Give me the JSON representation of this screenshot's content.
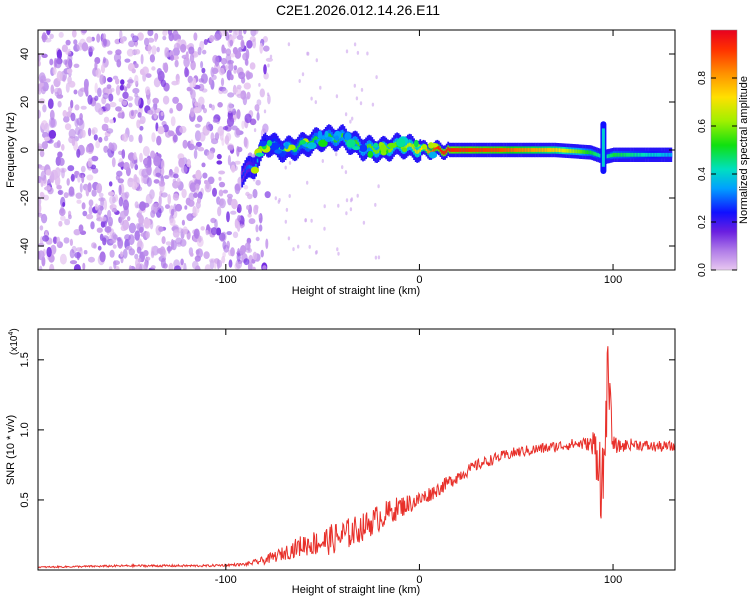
{
  "figure_title": "C2E1.2026.012.14.26.E11",
  "colors": {
    "snr_line": "#e8302a",
    "axis": "#000000",
    "background": "#ffffff"
  },
  "chart_data": [
    {
      "type": "heatmap",
      "title": "C2E1.2026.012.14.26.E11",
      "xlabel": "Height of straight line (km)",
      "ylabel": "Frequency (Hz)",
      "xlim": [
        -197,
        132
      ],
      "ylim": [
        -50,
        50
      ],
      "xticks": [
        -100,
        0,
        100
      ],
      "xtick_labels": [
        "-100",
        "0",
        "100"
      ],
      "yticks": [
        -40,
        -20,
        0,
        20,
        40
      ],
      "ytick_labels": [
        "-40",
        "-20",
        "0",
        "20",
        "40"
      ],
      "colorbar": {
        "label": "Normalized spectral amplitude",
        "range": [
          0,
          1
        ],
        "ticks": [
          0.0,
          0.2,
          0.4,
          0.6,
          0.8
        ],
        "tick_labels": [
          "0.0",
          "0.2",
          "0.4",
          "0.6",
          "0.8"
        ],
        "colormap": "rainbow (violet to red)"
      },
      "features": {
        "noise_region_x": [
          -197,
          -88
        ],
        "noise_region_amplitude": [
          0.0,
          0.15
        ],
        "track": {
          "x": [
            -92,
            -85,
            -80,
            -70,
            -60,
            -50,
            -40,
            -30,
            -20,
            -10,
            0,
            10,
            40,
            70,
            88,
            95,
            100,
            130
          ],
          "y": [
            -10,
            -6,
            3,
            0,
            2,
            5,
            5,
            1,
            0,
            2,
            0,
            0,
            0,
            0,
            -1,
            -3,
            -2,
            -2
          ],
          "amplitude": [
            0.25,
            0.35,
            0.4,
            0.45,
            0.5,
            0.5,
            0.55,
            0.55,
            0.6,
            0.6,
            0.7,
            0.95,
            0.9,
            0.75,
            0.5,
            0.4,
            0.5,
            0.35
          ]
        },
        "spike": {
          "x": 95,
          "y_range": [
            -10,
            12
          ]
        }
      }
    },
    {
      "type": "line",
      "xlabel": "Height of straight line (km)",
      "ylabel": "SNR (10 * v/v)",
      "y_scale_label": "(x10",
      "y_scale_exponent": "4",
      "y_scale_suffix": ")",
      "xlim": [
        -197,
        132
      ],
      "ylim": [
        0,
        1.72
      ],
      "xticks": [
        -100,
        0,
        100
      ],
      "xtick_labels": [
        "-100",
        "0",
        "100"
      ],
      "yticks": [
        0.5,
        1.0,
        1.5
      ],
      "ytick_labels": [
        "0.5",
        "1.0",
        "1.5"
      ],
      "series": [
        {
          "name": "SNR",
          "color": "#e8302a",
          "x": [
            -197,
            -150,
            -110,
            -90,
            -80,
            -70,
            -60,
            -50,
            -40,
            -30,
            -20,
            -10,
            0,
            10,
            20,
            30,
            40,
            50,
            60,
            70,
            80,
            88,
            92,
            95,
            97,
            100,
            103,
            110,
            120,
            132
          ],
          "y": [
            0.02,
            0.03,
            0.03,
            0.04,
            0.07,
            0.12,
            0.18,
            0.2,
            0.24,
            0.3,
            0.38,
            0.45,
            0.5,
            0.58,
            0.67,
            0.75,
            0.8,
            0.84,
            0.86,
            0.88,
            0.9,
            0.9,
            0.85,
            0.55,
            1.4,
            0.9,
            0.88,
            0.9,
            0.88,
            0.88
          ],
          "noise": [
            0.005,
            0.008,
            0.008,
            0.01,
            0.03,
            0.05,
            0.08,
            0.1,
            0.12,
            0.1,
            0.1,
            0.08,
            0.06,
            0.05,
            0.05,
            0.04,
            0.04,
            0.04,
            0.04,
            0.04,
            0.04,
            0.05,
            0.25,
            0.4,
            0.3,
            0.06,
            0.05,
            0.04,
            0.04,
            0.04
          ]
        }
      ]
    }
  ]
}
